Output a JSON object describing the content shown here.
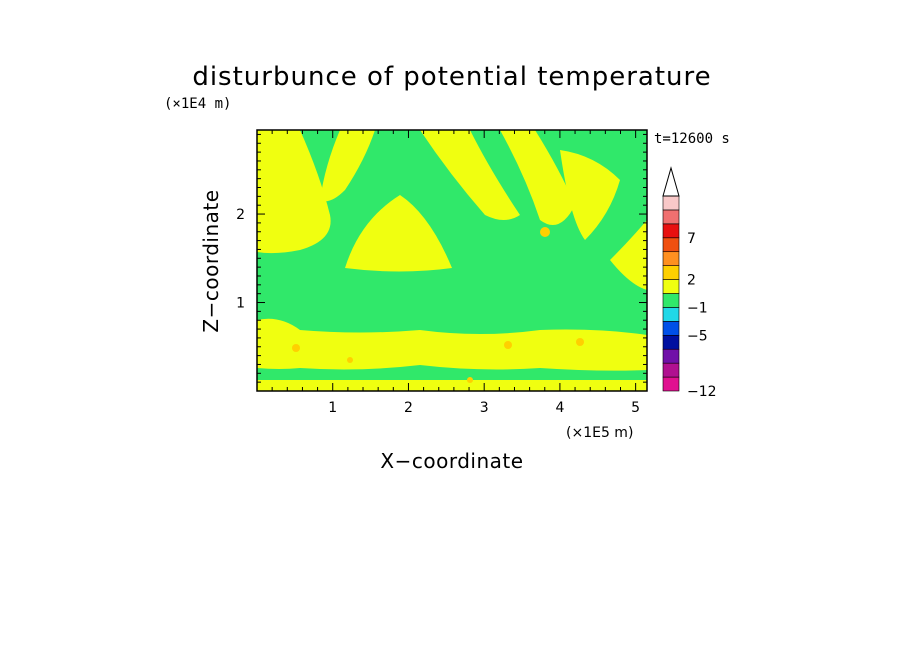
{
  "chart_data": {
    "type": "heatmap",
    "title": "disturbunce of potential temperature",
    "xlabel": "X−coordinate",
    "ylabel": "Z−coordinate",
    "x_scale_label": "(×1E5 m)",
    "y_scale_label": "(×1E4 m)",
    "time_label": "t=12600 s",
    "xlim": [
      0,
      5.15
    ],
    "ylim": [
      0,
      2.95
    ],
    "x_ticks": [
      "1",
      "2",
      "3",
      "4",
      "5"
    ],
    "y_ticks": [
      "1",
      "2"
    ],
    "colorbar": {
      "tick_labels": [
        "7",
        "2",
        "−1",
        "−5",
        "−12"
      ],
      "colors": [
        "#e01090",
        "#b01090",
        "#7010a8",
        "#0010a0",
        "#0050e8",
        "#20d8e8",
        "#30e86a",
        "#f0ff10",
        "#ffd000",
        "#ff9020",
        "#f05010",
        "#e81010",
        "#f07070",
        "#f8c8c8"
      ],
      "extend": "max"
    },
    "colors": {
      "background_field": "#30e86a",
      "positive_field": "#f0ff10",
      "warm_spots": "#ffd000"
    }
  }
}
